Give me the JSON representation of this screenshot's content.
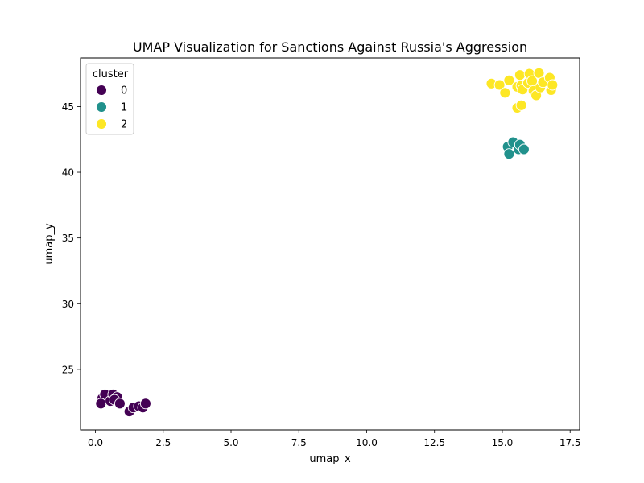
{
  "chart_data": {
    "type": "scatter",
    "title": "UMAP Visualization for Sanctions Against Russia's Aggression",
    "xlabel": "umap_x",
    "ylabel": "umap_y",
    "xlim": [
      -0.55,
      17.85
    ],
    "ylim": [
      20.4,
      48.7
    ],
    "xticks": [
      0.0,
      2.5,
      5.0,
      7.5,
      10.0,
      12.5,
      15.0,
      17.5
    ],
    "xtick_labels": [
      "0.0",
      "2.5",
      "5.0",
      "7.5",
      "10.0",
      "12.5",
      "15.0",
      "17.5"
    ],
    "yticks": [
      25,
      30,
      35,
      40,
      45
    ],
    "ytick_labels": [
      "25",
      "30",
      "35",
      "40",
      "45"
    ],
    "grid": false,
    "legend": {
      "title": "cluster",
      "placement": "top-left"
    },
    "series": [
      {
        "name": "0",
        "color": "#440154",
        "points": [
          [
            0.25,
            22.8
          ],
          [
            0.35,
            23.1
          ],
          [
            0.2,
            22.4
          ],
          [
            0.55,
            22.6
          ],
          [
            0.65,
            23.1
          ],
          [
            0.8,
            22.9
          ],
          [
            0.7,
            22.7
          ],
          [
            0.9,
            22.4
          ],
          [
            1.25,
            21.8
          ],
          [
            1.4,
            22.1
          ],
          [
            1.6,
            22.2
          ],
          [
            1.75,
            22.1
          ],
          [
            1.85,
            22.4
          ]
        ]
      },
      {
        "name": "1",
        "color": "#21918c",
        "points": [
          [
            15.2,
            41.95
          ],
          [
            15.4,
            42.3
          ],
          [
            15.6,
            41.75
          ],
          [
            15.65,
            42.1
          ],
          [
            15.8,
            41.75
          ],
          [
            15.25,
            41.4
          ]
        ]
      },
      {
        "name": "2",
        "color": "#fde725",
        "points": [
          [
            14.6,
            46.75
          ],
          [
            14.9,
            46.65
          ],
          [
            15.1,
            46.05
          ],
          [
            15.25,
            47.0
          ],
          [
            15.55,
            46.5
          ],
          [
            15.65,
            47.4
          ],
          [
            15.7,
            46.6
          ],
          [
            15.75,
            46.3
          ],
          [
            15.95,
            46.8
          ],
          [
            16.0,
            47.5
          ],
          [
            16.1,
            46.95
          ],
          [
            16.15,
            46.2
          ],
          [
            16.25,
            45.85
          ],
          [
            16.35,
            47.55
          ],
          [
            16.4,
            46.45
          ],
          [
            16.5,
            46.85
          ],
          [
            16.75,
            47.2
          ],
          [
            16.8,
            46.25
          ],
          [
            16.85,
            46.65
          ],
          [
            15.55,
            44.9
          ],
          [
            15.7,
            45.1
          ]
        ]
      }
    ]
  }
}
